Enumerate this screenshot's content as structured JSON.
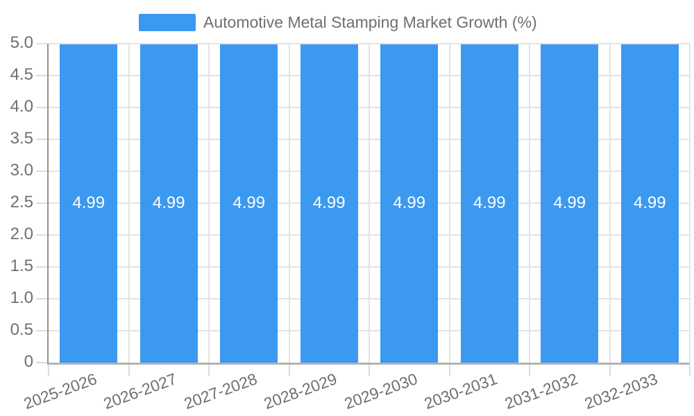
{
  "chart_data": {
    "type": "bar",
    "legend_label": "Automotive Metal Stamping Market Growth (%)",
    "legend_position": "top",
    "categories": [
      "2025-2026",
      "2026-2027",
      "2027-2028",
      "2028-2029",
      "2029-2030",
      "2030-2031",
      "2031-2032",
      "2032-2033"
    ],
    "series": [
      {
        "name": "Automotive Metal Stamping Market Growth (%)",
        "values": [
          4.99,
          4.99,
          4.99,
          4.99,
          4.99,
          4.99,
          4.99,
          4.99
        ]
      }
    ],
    "bar_labels": [
      "4.99",
      "4.99",
      "4.99",
      "4.99",
      "4.99",
      "4.99",
      "4.99",
      "4.99"
    ],
    "xlabel": "",
    "ylabel": "",
    "ylim": [
      0,
      5
    ],
    "ytick_values": [
      0,
      0.5,
      1,
      1.5,
      2,
      2.5,
      3,
      3.5,
      4,
      4.5,
      5
    ],
    "ytick_labels": [
      "0",
      "0.5",
      "1.0",
      "1.5",
      "2.0",
      "2.5",
      "3.0",
      "3.5",
      "4.0",
      "4.5",
      "5.0"
    ],
    "grid": true,
    "x_label_rotation_deg": -20
  },
  "colors": {
    "bar": "#3b99f0",
    "bar_value_text": "#ffffff",
    "axis_text": "#6f6f6f",
    "gridline": "#e3e3e3",
    "tick": "#dcdcdc",
    "y_axis_line": "#949494",
    "x_axis_line": "#b3b3b3",
    "background": "#ffffff"
  }
}
